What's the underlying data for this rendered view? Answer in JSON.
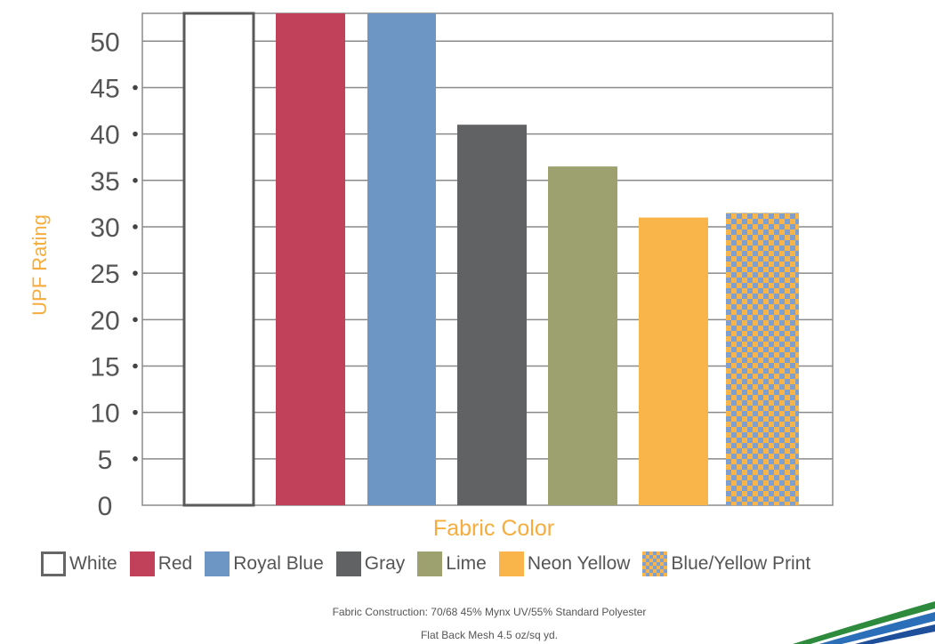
{
  "chart_data": {
    "type": "bar",
    "title": "",
    "xlabel": "Fabric Color",
    "ylabel": "UPF Rating",
    "ylim": [
      0,
      53
    ],
    "yticks": [
      "0",
      "5",
      "10",
      "15",
      "20",
      "25",
      "30",
      "35",
      "40",
      "45",
      "50"
    ],
    "categories": [
      "White",
      "Red",
      "Royal Blue",
      "Gray",
      "Lime",
      "Neon Yellow",
      "Blue/Yellow Print"
    ],
    "values": [
      53,
      53,
      53,
      41,
      36.5,
      31,
      31.5
    ],
    "colors": [
      "#ffffff",
      "#c2415a",
      "#6d96c5",
      "#616264",
      "#9da06f",
      "#f9b54a",
      "checker"
    ],
    "grid": true,
    "legend": "bottom"
  },
  "footnotes": {
    "line1": "Fabric Construction:  70/68 45% Mynx UV/55% Standard Polyester",
    "line2": "Flat Back Mesh 4.5 oz/sq yd."
  }
}
